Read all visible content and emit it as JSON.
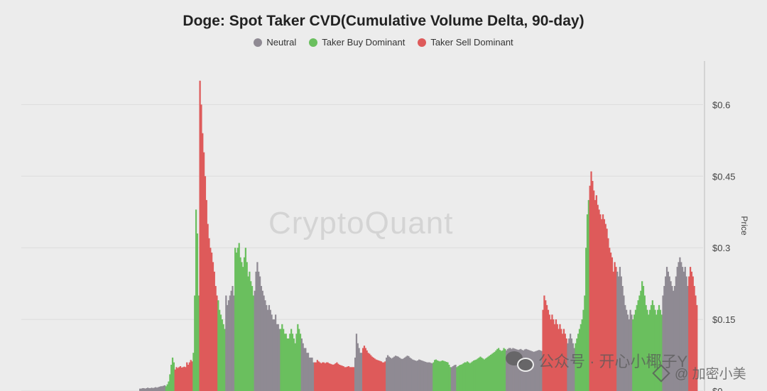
{
  "chart_data": {
    "type": "bar",
    "title": "Doge: Spot Taker CVD(Cumulative Volume Delta, 90-day)",
    "legend": [
      {
        "name": "Neutral",
        "color": "#8f8a93"
      },
      {
        "name": "Taker Buy Dominant",
        "color": "#6abf5e"
      },
      {
        "name": "Taker Sell Dominant",
        "color": "#de5a5a"
      }
    ],
    "legend_position": "top-center",
    "y_axis_right": {
      "label": "Price",
      "ticks": [
        "$0.6",
        "$0.45",
        "$0.3",
        "$0.15",
        "$0"
      ],
      "tick_values": [
        0.6,
        0.45,
        0.3,
        0.15,
        0
      ],
      "range": [
        0,
        0.7
      ]
    },
    "grid": true,
    "segments": [
      {
        "category": "Neutral",
        "values": [
          0.005,
          0.005,
          0.006,
          0.006,
          0.005,
          0.006,
          0.007,
          0.006,
          0.006,
          0.007,
          0.006,
          0.007,
          0.008,
          0.007,
          0.008,
          0.009,
          0.01,
          0.01,
          0.011,
          0.012
        ]
      },
      {
        "category": "Taker Buy Dominant",
        "values": [
          0.01,
          0.014,
          0.02,
          0.035,
          0.055,
          0.07,
          0.06
        ]
      },
      {
        "category": "Taker Sell Dominant",
        "values": [
          0.045,
          0.05,
          0.048,
          0.05,
          0.052,
          0.049,
          0.05,
          0.051,
          0.05,
          0.06,
          0.055,
          0.06,
          0.065,
          0.062
        ]
      },
      {
        "category": "Taker Buy Dominant",
        "values": [
          0.08,
          0.2,
          0.38,
          0.33,
          0.2
        ]
      },
      {
        "category": "Taker Sell Dominant",
        "values": [
          0.65,
          0.6,
          0.54,
          0.5,
          0.45,
          0.4,
          0.35,
          0.32,
          0.3,
          0.29,
          0.27,
          0.25,
          0.22,
          0.2
        ]
      },
      {
        "category": "Taker Buy Dominant",
        "values": [
          0.19,
          0.17,
          0.16,
          0.15,
          0.14,
          0.13
        ]
      },
      {
        "category": "Neutral",
        "values": [
          0.2,
          0.18,
          0.19,
          0.2,
          0.21,
          0.22,
          0.2
        ]
      },
      {
        "category": "Taker Buy Dominant",
        "values": [
          0.3,
          0.29,
          0.3,
          0.31,
          0.28,
          0.27,
          0.26,
          0.28,
          0.3,
          0.27,
          0.24,
          0.25,
          0.23,
          0.22,
          0.2
        ]
      },
      {
        "category": "Neutral",
        "values": [
          0.21,
          0.25,
          0.27,
          0.25,
          0.24,
          0.22,
          0.21,
          0.2,
          0.19,
          0.18,
          0.17,
          0.18,
          0.17,
          0.16,
          0.15,
          0.15,
          0.16,
          0.14,
          0.14,
          0.13
        ]
      },
      {
        "category": "Taker Buy Dominant",
        "values": [
          0.13,
          0.14,
          0.13,
          0.12,
          0.12,
          0.11,
          0.11,
          0.12,
          0.13,
          0.12,
          0.11,
          0.1,
          0.12,
          0.14,
          0.13,
          0.12
        ]
      },
      {
        "category": "Neutral",
        "values": [
          0.11,
          0.1,
          0.09,
          0.09,
          0.08,
          0.08,
          0.07,
          0.07,
          0.07,
          0.06
        ]
      },
      {
        "category": "Taker Sell Dominant",
        "values": [
          0.06,
          0.06,
          0.065,
          0.062,
          0.06,
          0.058,
          0.06,
          0.06,
          0.058,
          0.06,
          0.06,
          0.058,
          0.057,
          0.056,
          0.055,
          0.056,
          0.058,
          0.06,
          0.057,
          0.055,
          0.054,
          0.053,
          0.052,
          0.05,
          0.05,
          0.051,
          0.052,
          0.05,
          0.05,
          0.05,
          0.05
        ]
      },
      {
        "category": "Neutral",
        "values": [
          0.07,
          0.12,
          0.1,
          0.09,
          0.08,
          0.08
        ]
      },
      {
        "category": "Taker Sell Dominant",
        "values": [
          0.09,
          0.095,
          0.09,
          0.085,
          0.08,
          0.078,
          0.075,
          0.072,
          0.07,
          0.068,
          0.066,
          0.065,
          0.064,
          0.063,
          0.062,
          0.06,
          0.06,
          0.062
        ]
      },
      {
        "category": "Neutral",
        "values": [
          0.07,
          0.075,
          0.072,
          0.07,
          0.068,
          0.07,
          0.072,
          0.074,
          0.073,
          0.072,
          0.07,
          0.068,
          0.067,
          0.068,
          0.07,
          0.072,
          0.074,
          0.073,
          0.07,
          0.068,
          0.066,
          0.065,
          0.064,
          0.063,
          0.064,
          0.066,
          0.065,
          0.064,
          0.063,
          0.062,
          0.061,
          0.06,
          0.06,
          0.06,
          0.059,
          0.058
        ]
      },
      {
        "category": "Taker Buy Dominant",
        "values": [
          0.06,
          0.065,
          0.066,
          0.064,
          0.063,
          0.062,
          0.063,
          0.064,
          0.063,
          0.062,
          0.061,
          0.06,
          0.055,
          0.05
        ]
      },
      {
        "category": "Neutral",
        "values": [
          0.05,
          0.052,
          0.054,
          0.055
        ]
      },
      {
        "category": "Taker Buy Dominant",
        "values": [
          0.05,
          0.052,
          0.054,
          0.055,
          0.056,
          0.058,
          0.06,
          0.06,
          0.062,
          0.06,
          0.058,
          0.06,
          0.062,
          0.064,
          0.065,
          0.066,
          0.068,
          0.07,
          0.072,
          0.07,
          0.068,
          0.066,
          0.068,
          0.07,
          0.072,
          0.074,
          0.076,
          0.078,
          0.08,
          0.082,
          0.085,
          0.088,
          0.09,
          0.086,
          0.084,
          0.085,
          0.09,
          0.088
        ]
      },
      {
        "category": "Neutral",
        "values": [
          0.085,
          0.088,
          0.09,
          0.09,
          0.088,
          0.09,
          0.089,
          0.088,
          0.087,
          0.086,
          0.087,
          0.088,
          0.086,
          0.085,
          0.087,
          0.088,
          0.087,
          0.086,
          0.085,
          0.084,
          0.083,
          0.082,
          0.083,
          0.084,
          0.085,
          0.086,
          0.085,
          0.084
        ]
      },
      {
        "category": "Taker Sell Dominant",
        "values": [
          0.17,
          0.2,
          0.19,
          0.18,
          0.17,
          0.16,
          0.15,
          0.16,
          0.15,
          0.14,
          0.15,
          0.14,
          0.13,
          0.14,
          0.13,
          0.12,
          0.13,
          0.12,
          0.11
        ]
      },
      {
        "category": "Neutral",
        "values": [
          0.1,
          0.11,
          0.12,
          0.11,
          0.1,
          0.09
        ]
      },
      {
        "category": "Taker Buy Dominant",
        "values": [
          0.1,
          0.11,
          0.12,
          0.13,
          0.14,
          0.15,
          0.17,
          0.2,
          0.3,
          0.37,
          0.4
        ]
      },
      {
        "category": "Taker Sell Dominant",
        "values": [
          0.43,
          0.46,
          0.44,
          0.42,
          0.4,
          0.41,
          0.39,
          0.38,
          0.37,
          0.36,
          0.37,
          0.36,
          0.35,
          0.34,
          0.32,
          0.3,
          0.29,
          0.28,
          0.25,
          0.27,
          0.26
        ]
      },
      {
        "category": "Neutral",
        "values": [
          0.25,
          0.24,
          0.26,
          0.24,
          0.22,
          0.2,
          0.18,
          0.17,
          0.16,
          0.15,
          0.17,
          0.16
        ]
      },
      {
        "category": "Taker Buy Dominant",
        "values": [
          0.15,
          0.16,
          0.17,
          0.18,
          0.19,
          0.2,
          0.21,
          0.23,
          0.22,
          0.2,
          0.18,
          0.17,
          0.16,
          0.17,
          0.18,
          0.19,
          0.18,
          0.17,
          0.16,
          0.17,
          0.18,
          0.17,
          0.16
        ]
      },
      {
        "category": "Neutral",
        "values": [
          0.2,
          0.22,
          0.24,
          0.26,
          0.25,
          0.24,
          0.23,
          0.22,
          0.21,
          0.22,
          0.24,
          0.26,
          0.27,
          0.28,
          0.27,
          0.26,
          0.25,
          0.26,
          0.24,
          0.22
        ]
      },
      {
        "category": "Taker Sell Dominant",
        "values": [
          0.24,
          0.26,
          0.25,
          0.24,
          0.22,
          0.2,
          0.18
        ]
      }
    ]
  },
  "watermark": {
    "brand": "CryptoQuant",
    "social": "公众号 · 开心小椰子Y",
    "user": "@ 加密小美",
    "social_icon": "wechat-icon",
    "user_icon": "diamond-icon"
  }
}
